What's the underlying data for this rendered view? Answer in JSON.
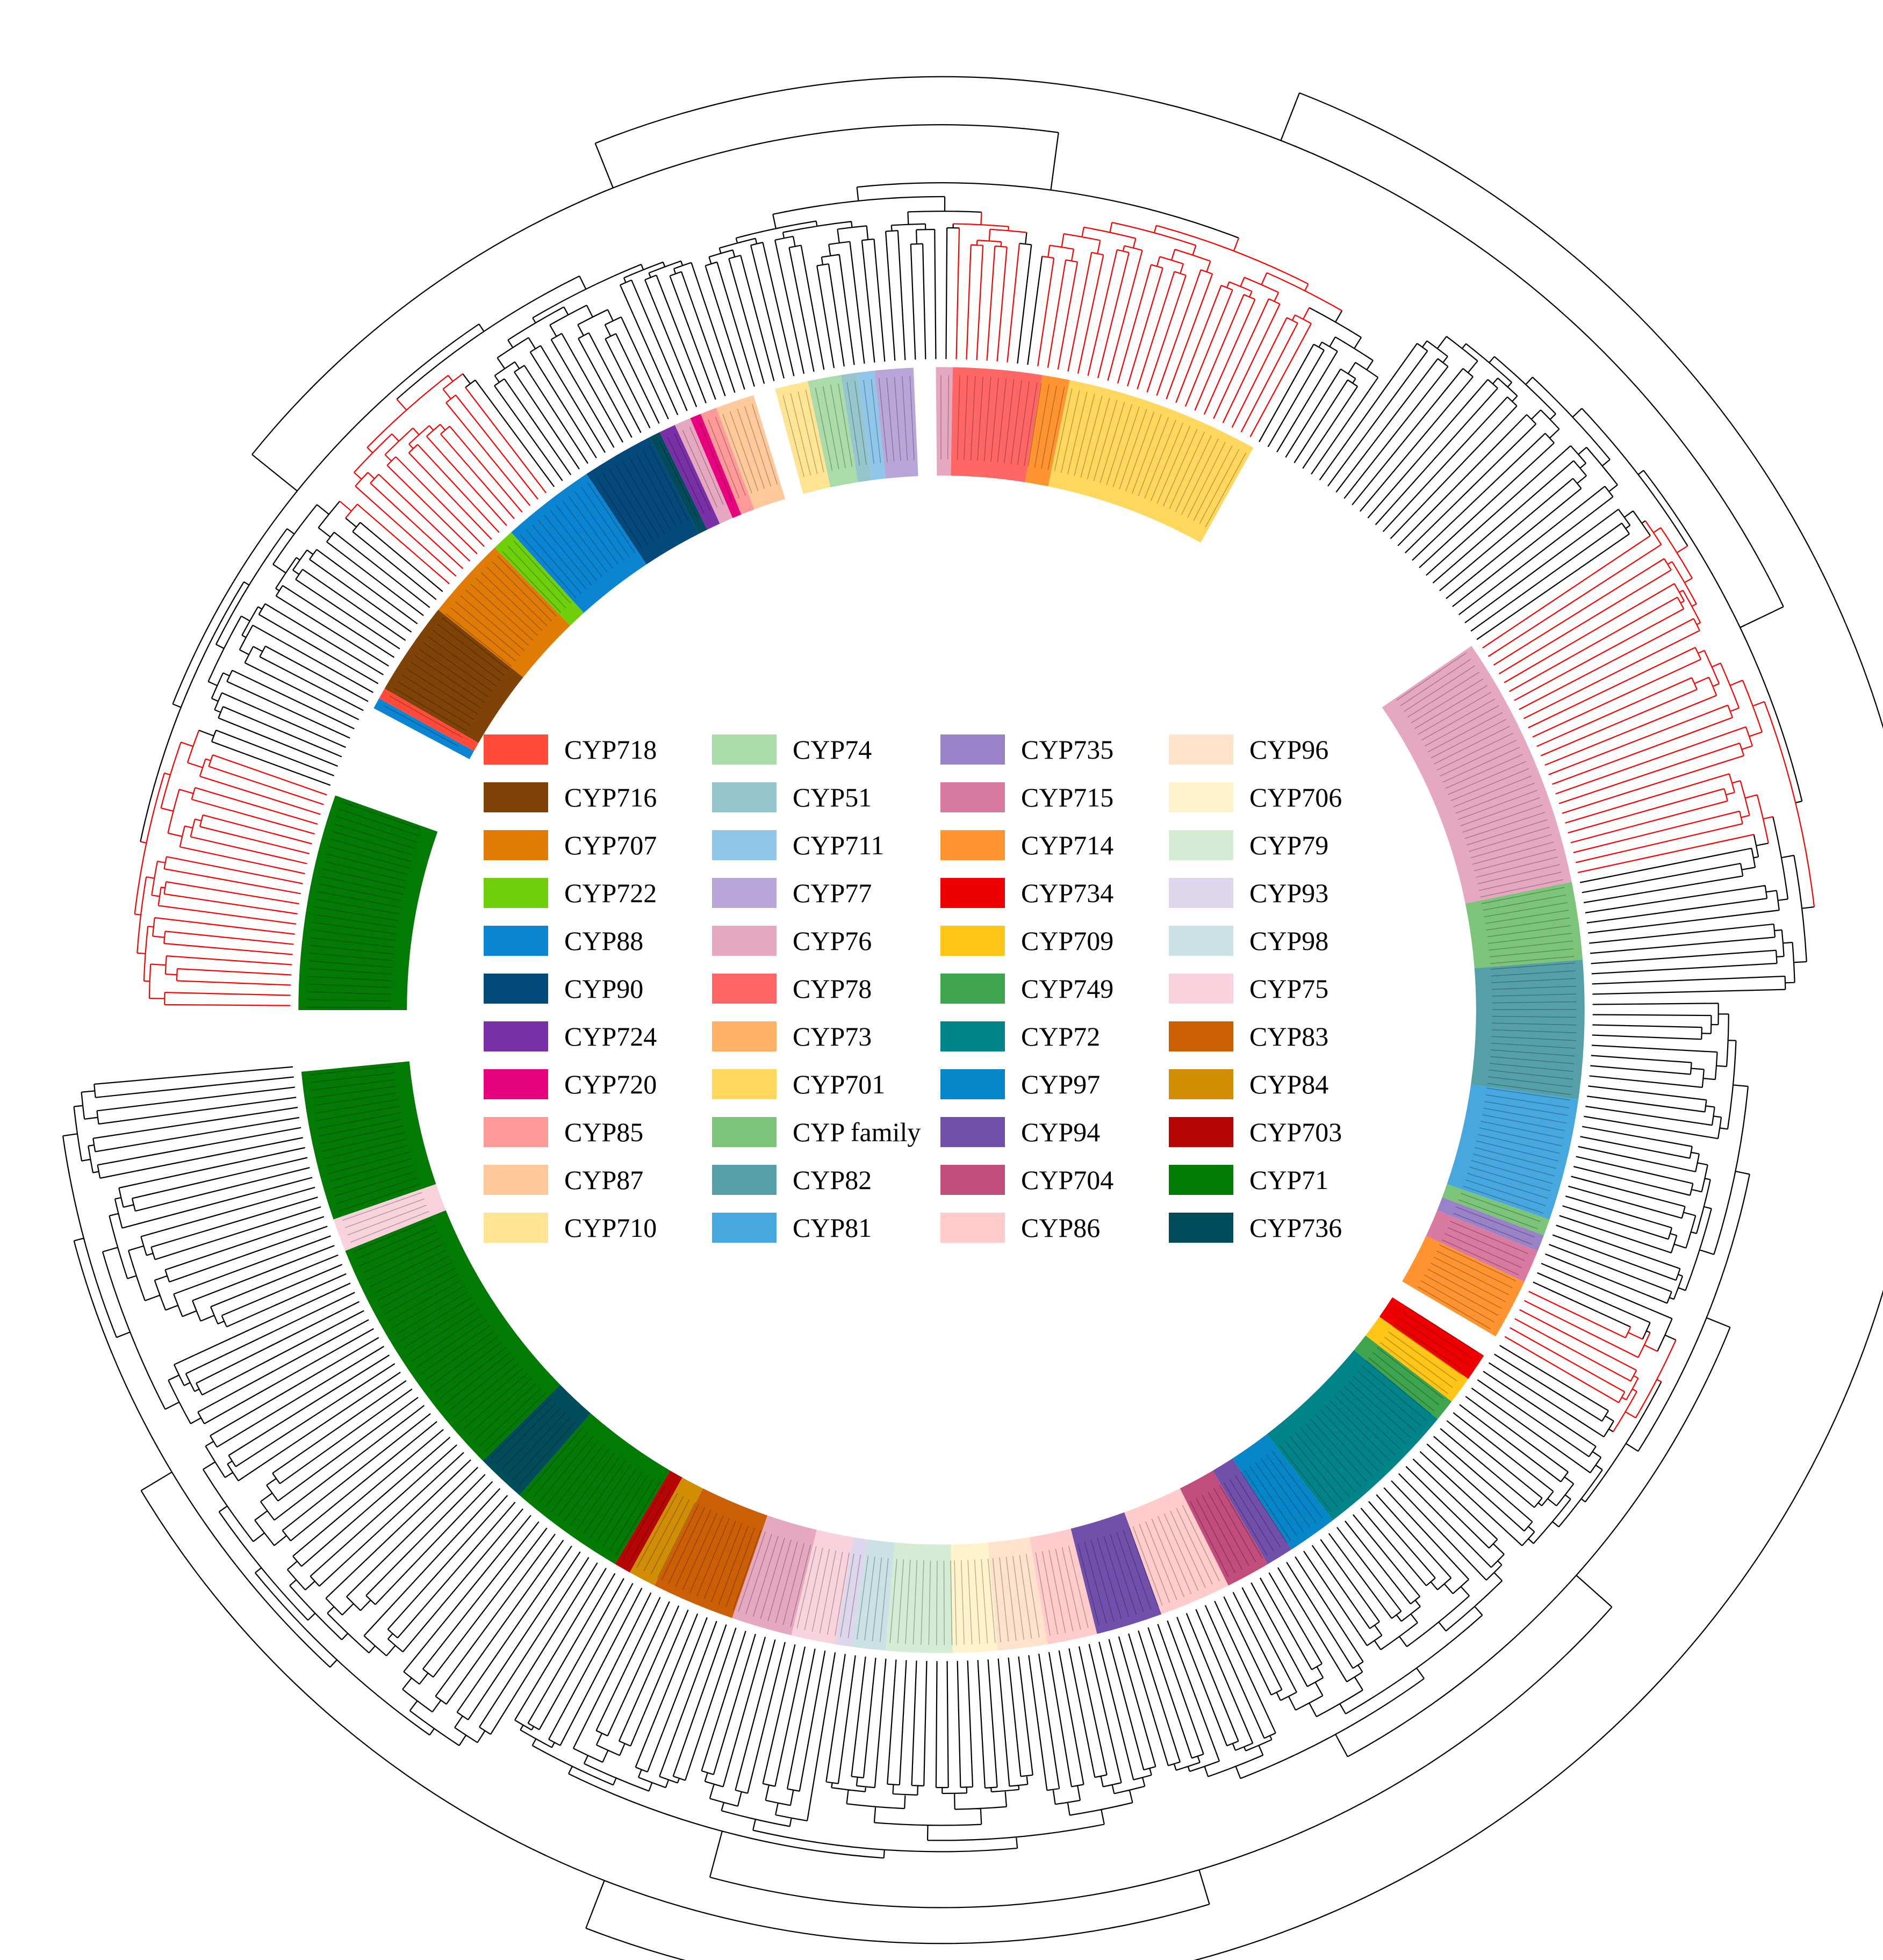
{
  "figure": {
    "type": "circular phylogenetic tree",
    "branch_colors": {
      "default": "#000000",
      "highlight": "#ff0000"
    }
  },
  "legend": {
    "items": [
      {
        "label": "CYP718",
        "color": "#ff4b3a"
      },
      {
        "label": "CYP716",
        "color": "#7f4207"
      },
      {
        "label": "CYP707",
        "color": "#e07b05"
      },
      {
        "label": "CYP722",
        "color": "#6fcf0a"
      },
      {
        "label": "CYP88",
        "color": "#0b85d1"
      },
      {
        "label": "CYP90",
        "color": "#03497a"
      },
      {
        "label": "CYP724",
        "color": "#7930a7"
      },
      {
        "label": "CYP720",
        "color": "#e8037e"
      },
      {
        "label": "CYP85",
        "color": "#ff9a9a"
      },
      {
        "label": "CYP87",
        "color": "#ffc99c"
      },
      {
        "label": "CYP710",
        "color": "#ffe494"
      },
      {
        "label": "CYP74",
        "color": "#aadba8"
      },
      {
        "label": "CYP51",
        "color": "#96c6cd"
      },
      {
        "label": "CYP711",
        "color": "#8fc6ea"
      },
      {
        "label": "CYP77",
        "color": "#b9a6d8"
      },
      {
        "label": "CYP76",
        "color": "#e6a8c0"
      },
      {
        "label": "CYP78",
        "color": "#ff6666"
      },
      {
        "label": "CYP73",
        "color": "#ffb266"
      },
      {
        "label": "CYP701",
        "color": "#ffd75c"
      },
      {
        "label": "CYP family",
        "color": "#7dc47b"
      },
      {
        "label": "CYP82",
        "color": "#55a0a8"
      },
      {
        "label": "CYP81",
        "color": "#47a8df"
      },
      {
        "label": "CYP735",
        "color": "#9a82c9"
      },
      {
        "label": "CYP715",
        "color": "#d97aa0"
      },
      {
        "label": "CYP714",
        "color": "#ff9430"
      },
      {
        "label": "CYP734",
        "color": "#ee0000"
      },
      {
        "label": "CYP709",
        "color": "#ffc517"
      },
      {
        "label": "CYP749",
        "color": "#3ea54e"
      },
      {
        "label": "CYP72",
        "color": "#00848a"
      },
      {
        "label": "CYP97",
        "color": "#0586c9"
      },
      {
        "label": "CYP94",
        "color": "#7150ab"
      },
      {
        "label": "CYP704",
        "color": "#c04d7c"
      },
      {
        "label": "CYP86",
        "color": "#ffcccb"
      },
      {
        "label": "CYP96",
        "color": "#ffe2cb"
      },
      {
        "label": "CYP706",
        "color": "#fff3cd"
      },
      {
        "label": "CYP79",
        "color": "#d4ebd4"
      },
      {
        "label": "CYP93",
        "color": "#ded6ec"
      },
      {
        "label": "CYP98",
        "color": "#cbe1e5"
      },
      {
        "label": "CYP75",
        "color": "#f8d3dd"
      },
      {
        "label": "CYP83",
        "color": "#cb5f06"
      },
      {
        "label": "CYP84",
        "color": "#d18e05"
      },
      {
        "label": "CYP703",
        "color": "#b50505"
      },
      {
        "label": "CYP71",
        "color": "#037a03"
      },
      {
        "label": "CYP736",
        "color": "#004c5a"
      }
    ]
  },
  "ring": {
    "sectors": [
      {
        "family": "CYP71",
        "color": "#037a03",
        "start": -174.5,
        "end": -161.0
      },
      {
        "family": "CYP75",
        "color": "#f8d3dd",
        "start": -161.0,
        "end": -158.0
      },
      {
        "family": "CYP71",
        "color": "#037a03",
        "start": -158.0,
        "end": -135.5
      },
      {
        "family": "CYP736",
        "color": "#004c5a",
        "start": -135.5,
        "end": -131.0
      },
      {
        "family": "CYP71",
        "color": "#037a03",
        "start": -131.0,
        "end": -120.5
      },
      {
        "family": "CYP703",
        "color": "#b50505",
        "start": -120.5,
        "end": -119.0
      },
      {
        "family": "CYP84",
        "color": "#d18e05",
        "start": -119.0,
        "end": -116.5
      },
      {
        "family": "CYP83",
        "color": "#cb5f06",
        "start": -116.5,
        "end": -109.0
      },
      {
        "family": "CYP76",
        "color": "#e6a8c0",
        "start": -109.0,
        "end": -103.5
      },
      {
        "family": "CYP75",
        "color": "#f8d3dd",
        "start": -103.5,
        "end": -99.5
      },
      {
        "family": "CYP93",
        "color": "#ded6ec",
        "start": -99.5,
        "end": -98.0
      },
      {
        "family": "CYP98",
        "color": "#cbe1e5",
        "start": -98.0,
        "end": -95.0
      },
      {
        "family": "CYP79",
        "color": "#d4ebd4",
        "start": -95.0,
        "end": -89.0
      },
      {
        "family": "CYP706",
        "color": "#fff3cd",
        "start": -89.0,
        "end": -85.0
      },
      {
        "family": "CYP96",
        "color": "#ffe2cb",
        "start": -85.0,
        "end": -80.5
      },
      {
        "family": "CYP86",
        "color": "#ffcccb",
        "start": -80.5,
        "end": -76.0
      },
      {
        "family": "CYP94",
        "color": "#7150ab",
        "start": -76.0,
        "end": -70.0
      },
      {
        "family": "CYP86",
        "color": "#ffcccb",
        "start": -70.0,
        "end": -63.5
      },
      {
        "family": "CYP704",
        "color": "#c04d7c",
        "start": -63.5,
        "end": -59.5
      },
      {
        "family": "CYP94",
        "color": "#7150ab",
        "start": -59.5,
        "end": -57.0
      },
      {
        "family": "CYP97",
        "color": "#0586c9",
        "start": -57.0,
        "end": -52.5
      },
      {
        "family": "CYP72",
        "color": "#00848a",
        "start": -52.5,
        "end": -39.5
      },
      {
        "family": "CYP749",
        "color": "#3ea54e",
        "start": -39.5,
        "end": -37.5
      },
      {
        "family": "CYP709",
        "color": "#ffc517",
        "start": -37.5,
        "end": -35.0
      },
      {
        "family": "CYP734",
        "color": "#ee0000",
        "start": -35.0,
        "end": -32.5
      },
      {
        "family": "CYP714",
        "color": "#ff9430",
        "start": -30.5,
        "end": -25.0
      },
      {
        "family": "CYP715",
        "color": "#d97aa0",
        "start": -25.0,
        "end": -22.0
      },
      {
        "family": "CYP735",
        "color": "#9a82c9",
        "start": -22.0,
        "end": -20.5
      },
      {
        "family": "CYP family",
        "color": "#7dc47b",
        "start": -20.5,
        "end": -19.0
      },
      {
        "family": "CYP81",
        "color": "#47a8df",
        "start": -19.0,
        "end": -8.0
      },
      {
        "family": "CYP82",
        "color": "#55a0a8",
        "start": -8.0,
        "end": 4.5
      },
      {
        "family": "CYP family",
        "color": "#7dc47b",
        "start": 4.5,
        "end": 11.5
      },
      {
        "family": "CYP76",
        "color": "#e6a8c0",
        "start": 11.5,
        "end": 34.5
      },
      {
        "family": "CYP701",
        "color": "#ffd75c",
        "start": 61.0,
        "end": 78.5
      },
      {
        "family": "CYP714",
        "color": "#ff9430",
        "start": 78.5,
        "end": 81.0
      },
      {
        "family": "CYP78",
        "color": "#ff6666",
        "start": 81.0,
        "end": 89.0
      },
      {
        "family": "CYP76",
        "color": "#e6a8c0",
        "start": 89.0,
        "end": 90.5
      },
      {
        "family": "CYP77",
        "color": "#b9a6d8",
        "start": 92.5,
        "end": 96.0
      },
      {
        "family": "CYP711",
        "color": "#8fc6ea",
        "start": 96.0,
        "end": 97.5
      },
      {
        "family": "CYP51",
        "color": "#96c6cd",
        "start": 97.5,
        "end": 99.0
      },
      {
        "family": "CYP74",
        "color": "#aadba8",
        "start": 99.0,
        "end": 102.0
      },
      {
        "family": "CYP710",
        "color": "#ffe494",
        "start": 102.0,
        "end": 105.0
      },
      {
        "family": "CYP87",
        "color": "#ffc99c",
        "start": 107.0,
        "end": 110.5
      },
      {
        "family": "CYP85",
        "color": "#ff9a9a",
        "start": 110.5,
        "end": 112.0
      },
      {
        "family": "CYP720",
        "color": "#e8037e",
        "start": 112.0,
        "end": 113.0
      },
      {
        "family": "CYP76",
        "color": "#e6a8c0",
        "start": 113.0,
        "end": 114.5
      },
      {
        "family": "CYP724",
        "color": "#7930a7",
        "start": 114.5,
        "end": 116.0
      },
      {
        "family": "CYP736",
        "color": "#004c5a",
        "start": 116.0,
        "end": 117.0
      },
      {
        "family": "CYP90",
        "color": "#03497a",
        "start": 117.0,
        "end": 123.5
      },
      {
        "family": "CYP88",
        "color": "#0b85d1",
        "start": 123.5,
        "end": 132.0
      },
      {
        "family": "CYP722",
        "color": "#6fcf0a",
        "start": 132.0,
        "end": 134.0
      },
      {
        "family": "CYP707",
        "color": "#e07b05",
        "start": 134.0,
        "end": 141.5
      },
      {
        "family": "CYP716",
        "color": "#7f4207",
        "start": 141.5,
        "end": 150.0
      },
      {
        "family": "CYP718",
        "color": "#ff4b3a",
        "start": 150.0,
        "end": 151.0
      },
      {
        "family": "CYP88",
        "color": "#0b85d1",
        "start": 151.0,
        "end": 152.0
      },
      {
        "family": "CYP71",
        "color": "#037a03",
        "start": 160.5,
        "end": 180.0
      }
    ],
    "red_branch_clades": [
      {
        "start": 160.5,
        "end": 180.0
      },
      {
        "start": 127.0,
        "end": 140.0
      },
      {
        "start": 61.0,
        "end": 82.0
      },
      {
        "start": 84.0,
        "end": 89.0
      },
      {
        "start": 11.5,
        "end": 34.5
      },
      {
        "start": -30.5,
        "end": -25.0
      }
    ]
  }
}
